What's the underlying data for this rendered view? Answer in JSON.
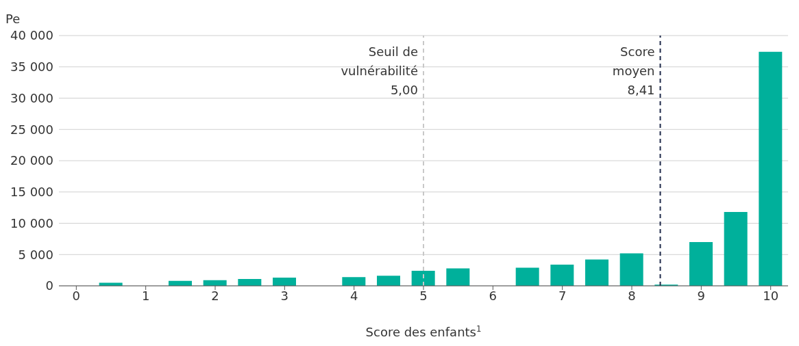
{
  "chart_data": {
    "type": "bar",
    "ylabel": "Pe",
    "xlabel": "Score des enfants$^{1}$",
    "x": [
      0.5,
      1.5,
      2,
      2.5,
      3,
      4,
      4.5,
      5,
      5.5,
      6.5,
      7,
      7.5,
      8,
      8.5,
      9,
      9.5,
      10
    ],
    "values": [
      500,
      800,
      900,
      1100,
      1300,
      1400,
      1600,
      2400,
      2800,
      2900,
      3400,
      4200,
      5200,
      200,
      7000,
      11800,
      37400
    ],
    "color": "#00b09b",
    "xlim": [
      -0.25,
      10.25
    ],
    "xticks": [
      0,
      1,
      2,
      3,
      4,
      5,
      6,
      7,
      8,
      9,
      10
    ],
    "ylim": [
      0,
      40000
    ],
    "yticks": [
      {
        "value": 0,
        "label": "0"
      },
      {
        "value": 5000,
        "label": "5 000"
      },
      {
        "value": 10000,
        "label": "10 000"
      },
      {
        "value": 15000,
        "label": "15 000"
      },
      {
        "value": 20000,
        "label": "20 000"
      },
      {
        "value": 25000,
        "label": "25 000"
      },
      {
        "value": 30000,
        "label": "30 000"
      },
      {
        "value": 35000,
        "label": "35 000"
      },
      {
        "value": 40000,
        "label": "40 000"
      }
    ],
    "grid": "y",
    "legend": false,
    "ref_lines": [
      {
        "axis": "x",
        "value": 5,
        "label": "Seuil de\nvulnérabilité\n5,00",
        "color": "#c8c8c8",
        "line_style": "dashed"
      },
      {
        "axis": "x",
        "value": 8.41,
        "label": "Score\nmoyen\n8,41",
        "color": "#1f2a4a",
        "line_style": "dashed"
      }
    ]
  }
}
